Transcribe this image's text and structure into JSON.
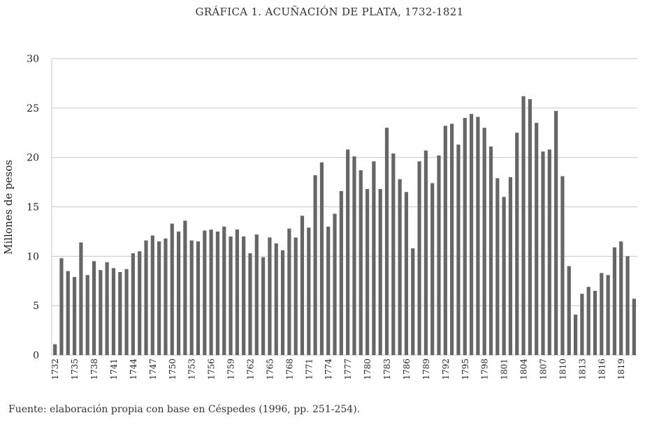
{
  "chart_data": {
    "type": "bar",
    "title": "GRÁFICA 1. ACUÑACIÓN DE PLATA, 1732-1821",
    "xlabel": "",
    "ylabel": "Millones de pesos",
    "ylim": [
      0,
      30
    ],
    "yticks": [
      0,
      5,
      10,
      15,
      20,
      25,
      30
    ],
    "grid": true,
    "bar_color": "#666666",
    "grid_color": "#c8c8c8",
    "x_tick_labels": [
      "1732",
      "1735",
      "1738",
      "1741",
      "1744",
      "1747",
      "1750",
      "1753",
      "1756",
      "1759",
      "1762",
      "1765",
      "1768",
      "1771",
      "1774",
      "1777",
      "1780",
      "1783",
      "1786",
      "1789",
      "1792",
      "1795",
      "1798",
      "1801",
      "1804",
      "1807",
      "1810",
      "1813",
      "1816",
      "1819"
    ],
    "categories": [
      "1732",
      "1733",
      "1734",
      "1735",
      "1736",
      "1737",
      "1738",
      "1739",
      "1740",
      "1741",
      "1742",
      "1743",
      "1744",
      "1745",
      "1746",
      "1747",
      "1748",
      "1749",
      "1750",
      "1751",
      "1752",
      "1753",
      "1754",
      "1755",
      "1756",
      "1757",
      "1758",
      "1759",
      "1760",
      "1761",
      "1762",
      "1763",
      "1764",
      "1765",
      "1766",
      "1767",
      "1768",
      "1769",
      "1770",
      "1771",
      "1772",
      "1773",
      "1774",
      "1775",
      "1776",
      "1777",
      "1778",
      "1779",
      "1780",
      "1781",
      "1782",
      "1783",
      "1784",
      "1785",
      "1786",
      "1787",
      "1788",
      "1789",
      "1790",
      "1791",
      "1792",
      "1793",
      "1794",
      "1795",
      "1796",
      "1797",
      "1798",
      "1799",
      "1800",
      "1801",
      "1802",
      "1803",
      "1804",
      "1805",
      "1806",
      "1807",
      "1808",
      "1809",
      "1810",
      "1811",
      "1812",
      "1813",
      "1814",
      "1815",
      "1816",
      "1817",
      "1818",
      "1819",
      "1820",
      "1821"
    ],
    "values": [
      1.1,
      9.8,
      8.5,
      7.9,
      11.4,
      8.1,
      9.5,
      8.6,
      9.4,
      8.8,
      8.4,
      8.7,
      10.3,
      10.5,
      11.6,
      12.1,
      11.5,
      11.8,
      13.3,
      12.5,
      13.6,
      11.6,
      11.5,
      12.6,
      12.7,
      12.5,
      13.0,
      12.0,
      12.7,
      12.0,
      10.3,
      12.2,
      9.9,
      11.9,
      11.3,
      10.6,
      12.8,
      11.9,
      14.1,
      12.9,
      18.2,
      19.5,
      13.0,
      14.3,
      16.6,
      20.8,
      20.1,
      18.7,
      16.8,
      19.6,
      16.8,
      23.0,
      20.4,
      17.8,
      16.5,
      10.8,
      19.6,
      20.7,
      17.4,
      20.2,
      23.2,
      23.4,
      21.3,
      24.0,
      24.4,
      24.1,
      23.0,
      21.1,
      17.9,
      16.0,
      18.0,
      22.5,
      26.2,
      25.9,
      23.5,
      20.6,
      20.8,
      24.7,
      18.1,
      9.0,
      4.1,
      6.2,
      6.9,
      6.5,
      8.3,
      8.1,
      10.9,
      11.5,
      10.0,
      5.7
    ]
  },
  "source_note": "Fuente: elaboración propia con base en Céspedes (1996, pp. 251-254)."
}
